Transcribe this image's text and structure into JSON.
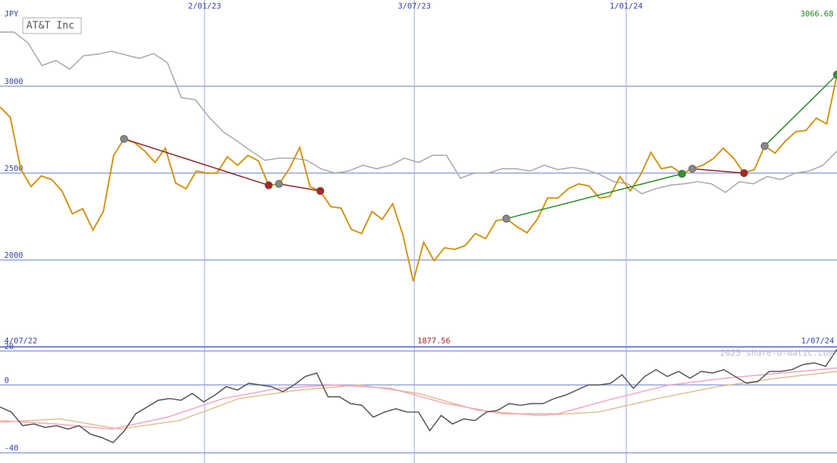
{
  "chart_data": [
    {
      "type": "line",
      "title": "AT&T Inc",
      "y_label": "JPY",
      "ylim": [
        1500,
        3496
      ],
      "yticks": [
        2000,
        2500,
        3000
      ],
      "xlim": [
        0,
        81
      ],
      "xticks": [
        {
          "value": 0,
          "label": "4/07/22"
        },
        {
          "value": 19.8,
          "label": "2/01/23"
        },
        {
          "value": 40.1,
          "label": "3/07/23"
        },
        {
          "value": 60.6,
          "label": "1/01/24"
        },
        {
          "value": 81,
          "label": "1/07/24"
        }
      ],
      "grid": true,
      "series": [
        {
          "name": "AT&T Inc",
          "color": "#d4900a",
          "values": [
            2881,
            2820,
            2525,
            2422,
            2484,
            2463,
            2397,
            2266,
            2295,
            2172,
            2279,
            2602,
            2697,
            2676,
            2627,
            2561,
            2643,
            2443,
            2410,
            2512,
            2500,
            2500,
            2594,
            2545,
            2602,
            2570,
            2430,
            2438,
            2525,
            2647,
            2422,
            2397,
            2307,
            2299,
            2176,
            2152,
            2279,
            2234,
            2324,
            2143,
            1877.56,
            2102,
            1996,
            2070,
            2061,
            2082,
            2152,
            2123,
            2225,
            2238,
            2193,
            2156,
            2234,
            2357,
            2357,
            2410,
            2438,
            2426,
            2357,
            2365,
            2480,
            2397,
            2492,
            2619,
            2525,
            2537,
            2496,
            2525,
            2545,
            2582,
            2643,
            2586,
            2500,
            2520,
            2656,
            2615,
            2684,
            2738,
            2746,
            2816,
            2783,
            3066.68
          ]
        },
        {
          "color": "#a8a8a8",
          "values": [
            3311,
            3311,
            3250,
            3119,
            3148,
            3098,
            3176,
            3184,
            3201,
            3180,
            3160,
            3188,
            3135,
            2934,
            2922,
            2820,
            2738,
            2684,
            2627,
            2574,
            2586,
            2586,
            2574,
            2525,
            2500,
            2512,
            2545,
            2525,
            2545,
            2586,
            2561,
            2602,
            2602,
            2471,
            2500,
            2500,
            2525,
            2525,
            2512,
            2545,
            2520,
            2533,
            2520,
            2492,
            2451,
            2438,
            2381,
            2410,
            2430,
            2438,
            2451,
            2438,
            2389,
            2451,
            2438,
            2480,
            2463,
            2500,
            2512,
            2545,
            2627
          ]
        }
      ],
      "trades": [
        {
          "from": 12,
          "to": 26,
          "color": "#8b1a1a"
        },
        {
          "from": 27,
          "to": 31,
          "color": "#8b1a1a"
        },
        {
          "from": 49,
          "to": 66,
          "color": "#1a8b1a"
        },
        {
          "from": 67,
          "to": 72,
          "color": "#8b1a1a"
        },
        {
          "from": 74,
          "to": 81,
          "color": "#1a8b1a"
        }
      ]
    },
    {
      "type": "line",
      "watermark": "2025 share-o-matic.com",
      "ylim": [
        -46,
        22
      ],
      "yticks": [
        -40,
        0,
        20
      ],
      "series": [
        {
          "color": "#555555",
          "values": [
            -13,
            -16,
            -24,
            -23,
            -25,
            -24,
            -26,
            -24,
            -29,
            -31,
            -34,
            -27,
            -17,
            -13,
            -9,
            -8,
            -9,
            -5,
            -10,
            -6,
            -1,
            -3,
            1,
            0,
            -1,
            -4,
            0,
            5,
            7,
            -7,
            -7,
            -11,
            -12,
            -19,
            -16,
            -14,
            -16,
            -16,
            -27,
            -18,
            -23,
            -20,
            -21,
            -16,
            -15,
            -11,
            -12,
            -11,
            -11,
            -8,
            -6,
            -3,
            0,
            0,
            1,
            6,
            -2,
            5,
            9,
            5,
            8,
            4,
            8,
            7,
            9,
            5,
            1,
            2,
            8,
            8,
            9,
            12,
            13,
            11,
            21
          ]
        },
        {
          "color": "#f4a6c0",
          "values": [
            -21,
            -23,
            -26,
            -19,
            -8,
            -2,
            0,
            -2,
            -11,
            -17,
            -17,
            -8,
            0,
            4,
            7,
            10
          ]
        },
        {
          "color": "#e0c090",
          "values": [
            -22,
            -20,
            -26,
            -21,
            -8,
            -3,
            0,
            -5,
            -15,
            -18,
            -16,
            -8,
            -1,
            4,
            8
          ]
        }
      ]
    }
  ]
}
